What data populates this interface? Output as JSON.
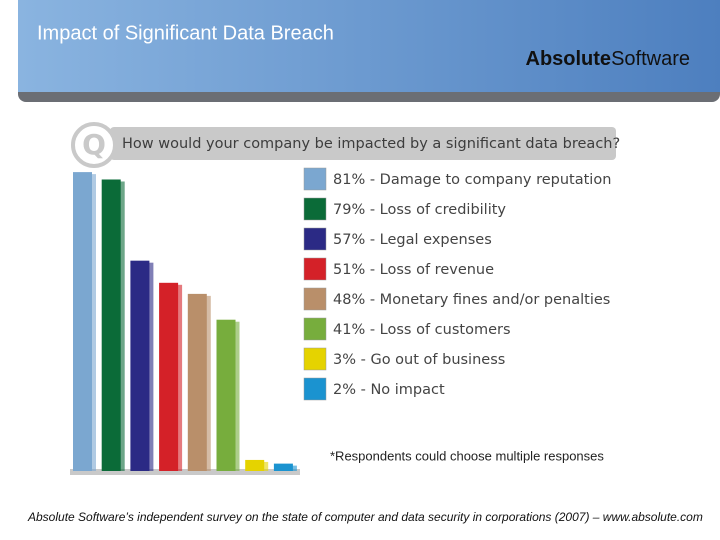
{
  "header": {
    "title": "Impact of Significant Data Breach",
    "logo_bold": "Absolute",
    "logo_regular": "Software"
  },
  "question_icon": "Q",
  "chart_data": {
    "type": "bar",
    "title": "How would your company be impacted by a significant data breach?",
    "categories": [
      "81% - Damage to company reputation",
      "79% - Loss of credibility",
      "57% - Legal expenses",
      "51% - Loss of revenue",
      "48% - Monetary fines and/or penalties",
      "41% - Loss of customers",
      "3% - Go out of business",
      "2% - No impact"
    ],
    "values": [
      81,
      79,
      57,
      51,
      48,
      41,
      3,
      2
    ],
    "colors": [
      "#7ba7d0",
      "#0b6b38",
      "#2b2a85",
      "#d42128",
      "#b98f6a",
      "#77ad3d",
      "#e5d300",
      "#1b93d0"
    ],
    "note": "*Respondents could choose multiple responses"
  },
  "footer": "Absolute Software’s independent survey on the state of computer and data security in corporations (2007) – www.absolute.com"
}
